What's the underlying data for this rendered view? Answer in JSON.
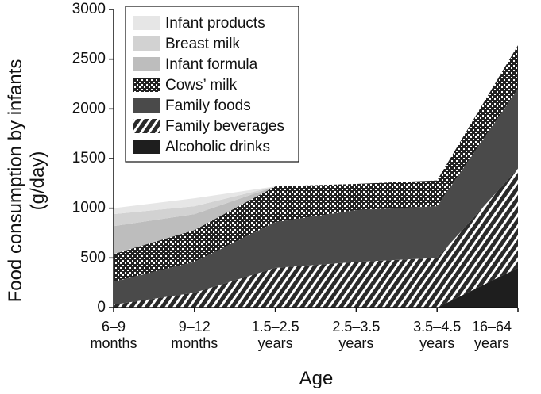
{
  "chart_data": {
    "type": "stacked-area",
    "x_label": "Age",
    "y_label": "Food consumption by infants\n(g/day)",
    "categories": [
      "6–9\nmonths",
      "9–12\nmonths",
      "1.5–2.5\nyears",
      "2.5–3.5\nyears",
      "3.5–4.5\nyears",
      "16–64\nyears"
    ],
    "ylim": [
      0,
      3000
    ],
    "yticks": [
      0,
      500,
      1000,
      1500,
      2000,
      2500,
      3000
    ],
    "series": [
      {
        "name": "Alcoholic drinks",
        "color": "#1e1e1e",
        "values": [
          0,
          0,
          0,
          0,
          0,
          400
        ]
      },
      {
        "name": "Family beverages",
        "color": "#3a3a3a",
        "values": [
          30,
          150,
          400,
          460,
          500,
          1000
        ]
      },
      {
        "name": "Family foods",
        "color": "#4a4a4a",
        "values": [
          230,
          310,
          460,
          520,
          520,
          800
        ]
      },
      {
        "name": "Cows’ milk",
        "color": "#2c2c2c",
        "values": [
          280,
          320,
          360,
          265,
          260,
          440
        ]
      },
      {
        "name": "Infant formula",
        "color": "#bdbdbd",
        "values": [
          280,
          160,
          0,
          0,
          0,
          0
        ]
      },
      {
        "name": "Breast milk",
        "color": "#d2d2d2",
        "values": [
          120,
          80,
          0,
          0,
          0,
          0
        ]
      },
      {
        "name": "Infant products",
        "color": "#e6e6e6",
        "values": [
          60,
          80,
          0,
          0,
          0,
          0
        ]
      }
    ]
  }
}
